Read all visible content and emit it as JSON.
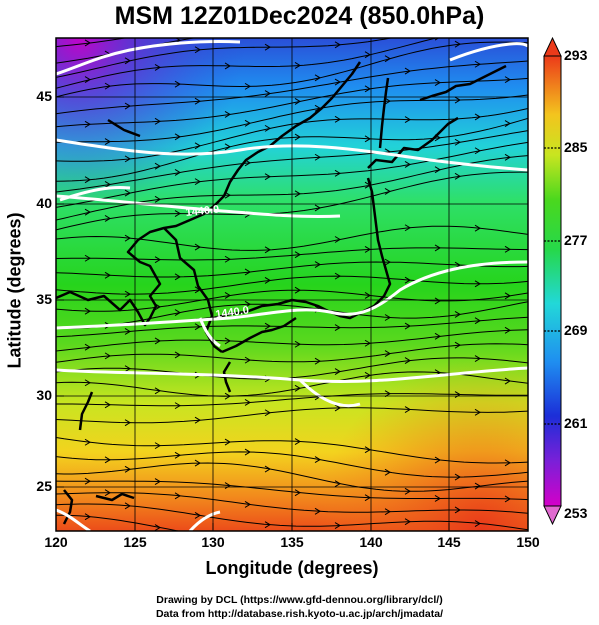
{
  "title": "MSM 12Z01Dec2024 (850.0hPa)",
  "axes": {
    "xlabel": "Longitude (degrees)",
    "ylabel": "Latitude  (degrees)",
    "xticks": [
      "120",
      "125",
      "130",
      "135",
      "140",
      "145",
      "150"
    ],
    "yticks": [
      "45",
      "40",
      "35",
      "30",
      "25"
    ],
    "xlim": [
      120,
      150
    ],
    "ylim": [
      22.4,
      47.6
    ]
  },
  "colorbar": {
    "ticks": [
      "293",
      "285",
      "277",
      "269",
      "261",
      "253"
    ],
    "min": 253,
    "max": 293
  },
  "contour_labels": [
    "1440.0",
    "1440.0"
  ],
  "credits": {
    "line1": "Drawing by DCL (https://www.gfd-dennou.org/library/dcl/)",
    "line2": "Data from http://database.rish.kyoto-u.ac.jp/arch/jmadata/"
  },
  "colors": {
    "cold": "#d400c8",
    "cool": "#1f5fe0",
    "mid": "#22dd22",
    "warm": "#f5e31e",
    "hot": "#ee3a1a",
    "coastline": "#000000",
    "contour": "#ffffff"
  },
  "chart_data": {
    "type": "heatmap",
    "title": "MSM 12Z01Dec2024 (850.0hPa)",
    "xlabel": "Longitude (degrees)",
    "ylabel": "Latitude  (degrees)",
    "xlim": [
      120,
      150
    ],
    "ylim": [
      22.4,
      47.6
    ],
    "color_range": [
      253,
      293
    ],
    "grid": true,
    "overlays": [
      "streamlines",
      "height-contours",
      "coastlines"
    ]
  }
}
